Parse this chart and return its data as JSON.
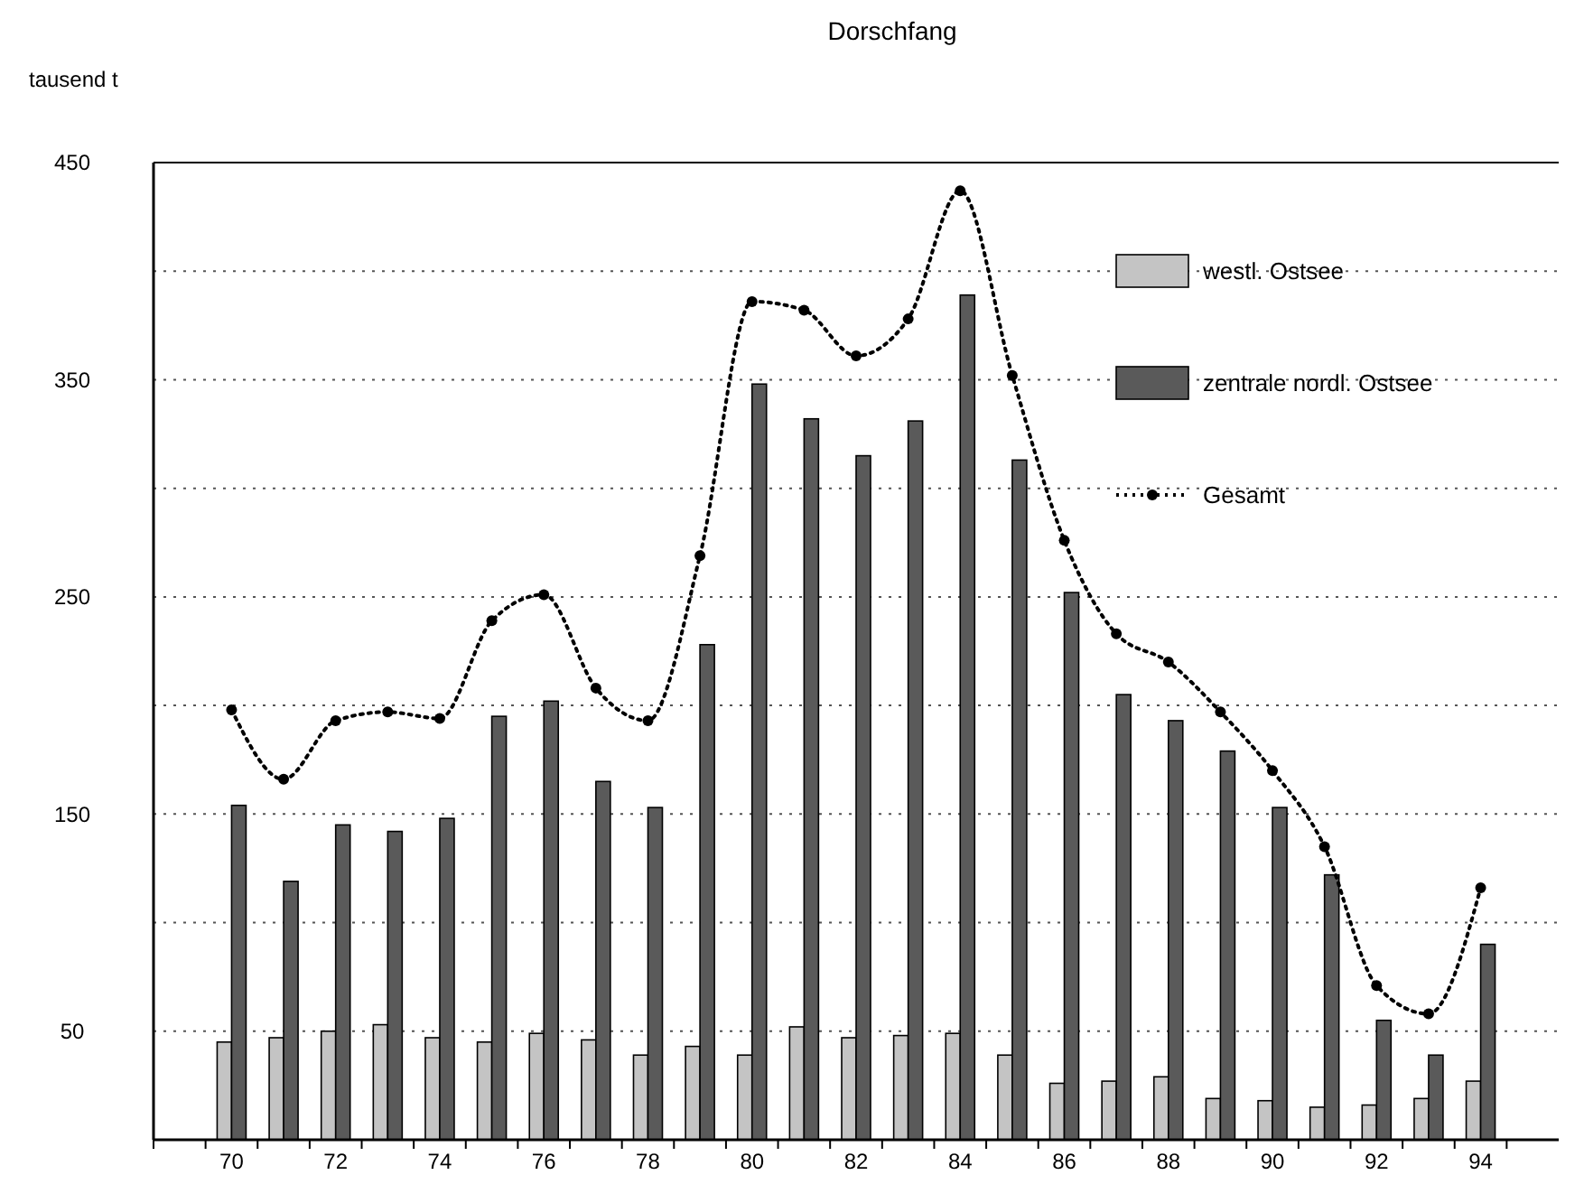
{
  "chart_data": {
    "type": "bar",
    "title": "Dorschfang",
    "ylabel": "tausend t",
    "categories": [
      null,
      "70",
      null,
      "72",
      null,
      "74",
      null,
      "76",
      null,
      "78",
      null,
      "80",
      null,
      "82",
      null,
      "84",
      null,
      "86",
      null,
      "88",
      null,
      "90",
      null,
      "92",
      null,
      "94",
      null
    ],
    "series": [
      {
        "name": "westl. Ostsee",
        "color": "#c4c4c4",
        "values": [
          null,
          45,
          47,
          50,
          53,
          47,
          45,
          49,
          46,
          39,
          43,
          39,
          52,
          47,
          48,
          49,
          39,
          26,
          27,
          29,
          19,
          18,
          15,
          16,
          19,
          27,
          null
        ]
      },
      {
        "name": "zentrale nordl. Ostsee",
        "color": "#5a5a5a",
        "values": [
          null,
          154,
          119,
          145,
          142,
          148,
          195,
          202,
          165,
          153,
          228,
          348,
          332,
          315,
          331,
          389,
          313,
          252,
          205,
          193,
          179,
          153,
          122,
          55,
          39,
          90,
          null
        ]
      },
      {
        "name": "Gesamt",
        "type": "line",
        "color": "#000000",
        "line_style": "dotted",
        "marker": "circle",
        "values": [
          null,
          198,
          166,
          193,
          197,
          194,
          239,
          251,
          208,
          193,
          269,
          386,
          382,
          361,
          378,
          437,
          352,
          276,
          233,
          220,
          197,
          170,
          135,
          71,
          58,
          116,
          null
        ]
      }
    ],
    "ylim": [
      0,
      450
    ],
    "yticks": [
      {
        "value": 0,
        "label": null
      },
      50,
      {
        "value": 100,
        "label": null
      },
      150,
      {
        "value": 200,
        "label": null
      },
      250,
      {
        "value": 300,
        "label": null
      },
      350,
      {
        "value": 400,
        "label": null
      },
      450
    ],
    "grid": "y",
    "legend": "top right"
  }
}
